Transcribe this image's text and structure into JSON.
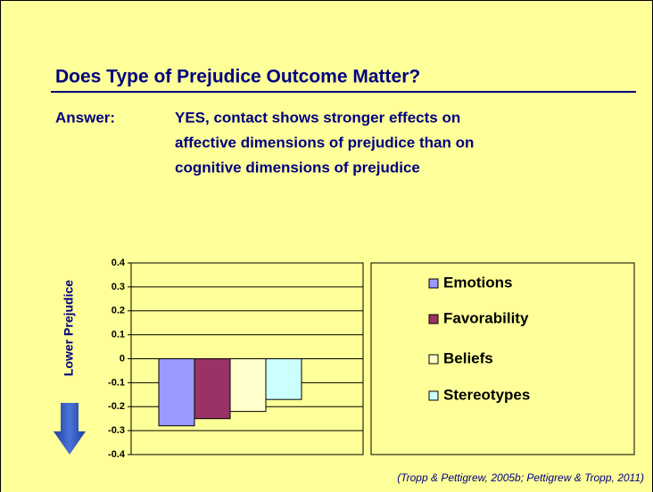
{
  "slide": {
    "title": "Does Type of Prejudice Outcome Matter?",
    "answer_label": "Answer:",
    "answer_lines": [
      "YES, contact shows stronger effects on",
      "affective dimensions of prejudice than on",
      "cognitive dimensions of prejudice"
    ],
    "citation": "(Tropp & Pettigrew, 2005b; Pettigrew & Tropp, 2011)"
  },
  "chart_data": {
    "type": "bar",
    "y_label": "Lower Prejudice",
    "ylim": [
      -0.4,
      0.4
    ],
    "yticks": [
      0.4,
      0.3,
      0.2,
      0.1,
      0,
      -0.1,
      -0.2,
      -0.3,
      -0.4
    ],
    "grid": true,
    "legend": "right",
    "series": [
      {
        "name": "Emotions",
        "color": "#9999ff",
        "values": [
          -0.28
        ]
      },
      {
        "name": "Favorability",
        "color": "#993366",
        "values": [
          -0.25
        ]
      },
      {
        "name": "Beliefs",
        "color": "#ffffcc",
        "values": [
          -0.22
        ]
      },
      {
        "name": "Stereotypes",
        "color": "#ccffff",
        "values": [
          -0.17
        ]
      }
    ]
  }
}
